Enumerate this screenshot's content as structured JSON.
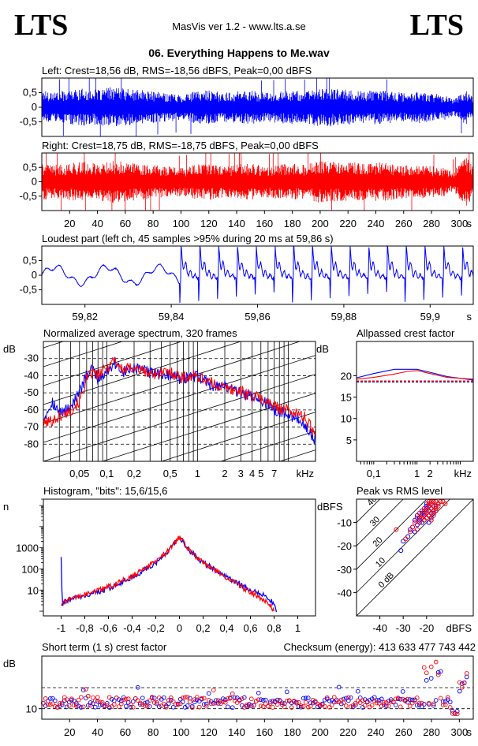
{
  "header": {
    "logo_left": "LTS",
    "logo_right": "LTS",
    "app_title": "MasVis ver 1.2 - www.lts.a.se",
    "file_title": "06. Everything Happens to Me.wav"
  },
  "colors": {
    "left": "#0000ff",
    "right": "#ff0000",
    "grid": "#000000",
    "background": "#ffffff"
  },
  "chart_data": [
    {
      "id": "left-waveform",
      "type": "area",
      "title": "Left: Crest=18,56 dB, RMS=-18,56 dBFS, Peak=0,00 dBFS",
      "ylim": [
        -1,
        1
      ],
      "xlim": [
        0,
        310
      ],
      "yticks": [
        {
          "v": 0.5,
          "l": "0,5"
        },
        {
          "v": 0,
          "l": "0"
        },
        {
          "v": -0.5,
          "l": "-0,5"
        }
      ],
      "envelope": {
        "x": [
          0,
          10,
          20,
          30,
          40,
          50,
          60,
          70,
          80,
          90,
          100,
          110,
          120,
          130,
          140,
          150,
          160,
          170,
          180,
          190,
          200,
          210,
          220,
          230,
          240,
          250,
          260,
          270,
          280,
          290,
          295,
          300,
          305,
          310
        ],
        "amp": [
          0.6,
          0.55,
          0.6,
          0.65,
          0.6,
          0.7,
          0.65,
          0.6,
          0.55,
          0.5,
          0.45,
          0.55,
          0.6,
          0.5,
          0.55,
          0.6,
          0.5,
          0.55,
          0.6,
          0.55,
          0.7,
          0.65,
          0.6,
          0.55,
          0.6,
          0.55,
          0.5,
          0.55,
          0.5,
          0.45,
          0.3,
          0.45,
          0.6,
          0.35
        ]
      }
    },
    {
      "id": "right-waveform",
      "type": "area",
      "title": "Right: Crest=18,75 dB, RMS=-18,75 dBFS, Peak=0,00 dBFS",
      "ylim": [
        -1,
        1
      ],
      "xlim": [
        0,
        310
      ],
      "xlabel": "s",
      "yticks": [
        {
          "v": 0.5,
          "l": "0,5"
        },
        {
          "v": 0,
          "l": "0"
        },
        {
          "v": -0.5,
          "l": "-0,5"
        }
      ],
      "xticks": [
        {
          "v": 20,
          "l": "20"
        },
        {
          "v": 40,
          "l": "40"
        },
        {
          "v": 60,
          "l": "60"
        },
        {
          "v": 80,
          "l": "80"
        },
        {
          "v": 100,
          "l": "100"
        },
        {
          "v": 120,
          "l": "120"
        },
        {
          "v": 140,
          "l": "140"
        },
        {
          "v": 160,
          "l": "160"
        },
        {
          "v": 180,
          "l": "180"
        },
        {
          "v": 200,
          "l": "200"
        },
        {
          "v": 220,
          "l": "220"
        },
        {
          "v": 240,
          "l": "240"
        },
        {
          "v": 260,
          "l": "260"
        },
        {
          "v": 280,
          "l": "280"
        },
        {
          "v": 300,
          "l": "300"
        }
      ],
      "envelope": {
        "x": [
          0,
          10,
          20,
          30,
          40,
          50,
          60,
          70,
          80,
          90,
          100,
          110,
          120,
          130,
          140,
          150,
          160,
          170,
          180,
          190,
          200,
          210,
          220,
          230,
          240,
          250,
          260,
          270,
          280,
          290,
          295,
          300,
          305,
          310
        ],
        "amp": [
          0.65,
          0.6,
          0.65,
          0.7,
          0.65,
          0.75,
          0.7,
          0.65,
          0.6,
          0.55,
          0.5,
          0.6,
          0.65,
          0.55,
          0.6,
          0.65,
          0.55,
          0.6,
          0.65,
          0.6,
          0.75,
          0.7,
          0.7,
          0.65,
          0.7,
          0.65,
          0.6,
          0.6,
          0.55,
          0.5,
          0.35,
          0.6,
          0.9,
          0.5
        ]
      }
    },
    {
      "id": "loudest-part",
      "type": "line",
      "title": "Loudest part (left  ch, 45 samples >95% during 20 ms at 59,86 s)",
      "ylim": [
        -1,
        1
      ],
      "xlim": [
        59.81,
        59.91
      ],
      "xlabel": "s",
      "yticks": [
        {
          "v": 0.5,
          "l": "0,5"
        },
        {
          "v": 0,
          "l": "0"
        },
        {
          "v": -0.5,
          "l": "-0,5"
        }
      ],
      "xticks": [
        {
          "v": 59.82,
          "l": "59,82"
        },
        {
          "v": 59.84,
          "l": "59,84"
        },
        {
          "v": 59.86,
          "l": "59,86"
        },
        {
          "v": 59.88,
          "l": "59,88"
        },
        {
          "v": 59.9,
          "l": "59,9"
        }
      ]
    },
    {
      "id": "spectrum",
      "type": "line",
      "title": "Normalized average spectrum, 320 frames",
      "ylabel": "dB",
      "xlabel": "kHz",
      "xscale": "log",
      "xlim": [
        0.02,
        20
      ],
      "ylim": [
        -90,
        -20
      ],
      "yticks": [
        {
          "v": -30,
          "l": "-30"
        },
        {
          "v": -40,
          "l": "-40"
        },
        {
          "v": -50,
          "l": "-50"
        },
        {
          "v": -60,
          "l": "-60"
        },
        {
          "v": -70,
          "l": "-70"
        },
        {
          "v": -80,
          "l": "-80"
        }
      ],
      "xticks": [
        {
          "v": 0.05,
          "l": "0,05"
        },
        {
          "v": 0.1,
          "l": "0,1"
        },
        {
          "v": 0.2,
          "l": "0,2"
        },
        {
          "v": 0.5,
          "l": "0,5"
        },
        {
          "v": 1,
          "l": "1"
        },
        {
          "v": 2,
          "l": "2"
        },
        {
          "v": 3,
          "l": "3"
        },
        {
          "v": 4,
          "l": "4"
        },
        {
          "v": 5,
          "l": "5"
        },
        {
          "v": 7,
          "l": "7"
        }
      ],
      "series": [
        {
          "color": "#0000ff",
          "x": [
            0.02,
            0.025,
            0.03,
            0.04,
            0.05,
            0.06,
            0.07,
            0.08,
            0.1,
            0.12,
            0.15,
            0.2,
            0.3,
            0.5,
            0.7,
            1,
            1.5,
            2,
            3,
            4,
            5,
            7,
            10,
            15,
            20
          ],
          "y": [
            -65,
            -55,
            -62,
            -58,
            -50,
            -40,
            -36,
            -42,
            -38,
            -32,
            -38,
            -36,
            -38,
            -40,
            -42,
            -40,
            -46,
            -46,
            -50,
            -52,
            -54,
            -60,
            -62,
            -68,
            -78
          ]
        },
        {
          "color": "#ff0000",
          "x": [
            0.02,
            0.025,
            0.03,
            0.04,
            0.05,
            0.06,
            0.07,
            0.08,
            0.1,
            0.12,
            0.15,
            0.2,
            0.3,
            0.5,
            0.7,
            1,
            1.5,
            2,
            3,
            4,
            5,
            7,
            10,
            15,
            20
          ],
          "y": [
            -68,
            -66,
            -64,
            -60,
            -55,
            -42,
            -38,
            -40,
            -36,
            -30,
            -37,
            -35,
            -39,
            -38,
            -41,
            -40,
            -45,
            -47,
            -49,
            -52,
            -53,
            -58,
            -60,
            -64,
            -74
          ]
        }
      ]
    },
    {
      "id": "allpassed-crest",
      "type": "line",
      "title": "Allpassed crest factor",
      "ylabel": "dB",
      "xlabel": "kHz",
      "xscale": "log",
      "xlim": [
        0.04,
        20
      ],
      "ylim": [
        0,
        28
      ],
      "yticks": [
        {
          "v": 20,
          "l": "20"
        },
        {
          "v": 15,
          "l": "15"
        },
        {
          "v": 10,
          "l": "10"
        },
        {
          "v": 5,
          "l": "5"
        }
      ],
      "xticks": [
        {
          "v": 0.1,
          "l": "0,1"
        },
        {
          "v": 1,
          "l": "1"
        },
        {
          "v": 2,
          "l": "2"
        }
      ],
      "series": [
        {
          "color": "#0000ff",
          "x": [
            0.04,
            0.1,
            0.3,
            0.6,
            1,
            2,
            5,
            20
          ],
          "y": [
            19.5,
            20.5,
            21.5,
            21.5,
            21.5,
            20.8,
            19.8,
            19
          ]
        },
        {
          "color": "#ff0000",
          "x": [
            0.04,
            0.1,
            0.3,
            0.6,
            1,
            2,
            5,
            20
          ],
          "y": [
            19.2,
            19.6,
            20.4,
            21,
            21.2,
            20.5,
            19.6,
            19.2
          ]
        }
      ],
      "reference": [
        {
          "color": "#0000ff",
          "y": 18.56
        },
        {
          "color": "#ff0000",
          "y": 18.75
        }
      ]
    },
    {
      "id": "histogram",
      "type": "line",
      "title": "Histogram, \"bits\": 15,6/15,6",
      "ylabel": "n",
      "yscale": "log",
      "xlim": [
        -1.15,
        1.15
      ],
      "ylim": [
        0.6,
        200000
      ],
      "yticks": [
        {
          "v": 1000,
          "l": "1000"
        },
        {
          "v": 100,
          "l": "100"
        },
        {
          "v": 10,
          "l": "10"
        }
      ],
      "xticks": [
        {
          "v": -1,
          "l": "-1"
        },
        {
          "v": -0.8,
          "l": "-0,8"
        },
        {
          "v": -0.6,
          "l": "-0,6"
        },
        {
          "v": -0.4,
          "l": "-0,4"
        },
        {
          "v": -0.2,
          "l": "-0,2"
        },
        {
          "v": 0,
          "l": "0"
        },
        {
          "v": 0.2,
          "l": "0,2"
        },
        {
          "v": 0.4,
          "l": "0,4"
        },
        {
          "v": 0.6,
          "l": "0,6"
        },
        {
          "v": 0.8,
          "l": "0,8"
        },
        {
          "v": 1,
          "l": "1"
        }
      ],
      "series": [
        {
          "color": "#0000ff",
          "x": [
            -1,
            -0.99,
            -0.96,
            -0.9,
            -0.8,
            -0.6,
            -0.4,
            -0.2,
            -0.1,
            0,
            0.1,
            0.2,
            0.4,
            0.6,
            0.7,
            0.78,
            0.8,
            0.82
          ],
          "y": [
            400,
            2,
            3,
            4,
            5,
            12,
            40,
            200,
            600,
            3000,
            600,
            200,
            40,
            10,
            6,
            3,
            2,
            1
          ]
        },
        {
          "color": "#ff0000",
          "x": [
            -1,
            -0.99,
            -0.96,
            -0.9,
            -0.8,
            -0.6,
            -0.4,
            -0.2,
            -0.1,
            0,
            0.1,
            0.2,
            0.4,
            0.6,
            0.7,
            0.76,
            0.78,
            0.8
          ],
          "y": [
            2,
            2,
            3,
            4,
            6,
            14,
            45,
            220,
            650,
            3200,
            620,
            210,
            38,
            8,
            4,
            2,
            1.5,
            1
          ]
        }
      ]
    },
    {
      "id": "peak-vs-rms",
      "type": "scatter",
      "title": "Peak vs RMS level",
      "ylabel": "dBFS",
      "xlabel": "dBFS",
      "xlim": [
        -50,
        0
      ],
      "ylim": [
        -50,
        0
      ],
      "yticks": [
        {
          "v": -10,
          "l": "-10"
        },
        {
          "v": -20,
          "l": "-20"
        },
        {
          "v": -30,
          "l": "-30"
        },
        {
          "v": -40,
          "l": "-40"
        }
      ],
      "xticks": [
        {
          "v": -40,
          "l": "-40"
        },
        {
          "v": -30,
          "l": "-30"
        },
        {
          "v": -20,
          "l": "-20"
        }
      ],
      "crest_labels": [
        {
          "v": 40,
          "l": "40"
        },
        {
          "v": 30,
          "l": "30"
        },
        {
          "v": 20,
          "l": "20"
        },
        {
          "v": 10,
          "l": "10"
        },
        {
          "v": 0,
          "l": "0 dB"
        }
      ],
      "series": [
        {
          "color": "#0000ff",
          "x": [
            -22,
            -20,
            -19,
            -18,
            -21,
            -23,
            -17,
            -16,
            -24,
            -19,
            -18,
            -25,
            -20,
            -22,
            -15,
            -26,
            -21,
            -19,
            -17,
            -27,
            -20,
            -18,
            -22,
            -24,
            -16,
            -14,
            -28,
            -19,
            -21,
            -23,
            -30,
            -25,
            -20,
            -18,
            -31,
            -17,
            -19
          ],
          "y": [
            -5,
            -3,
            -2,
            -4,
            -6,
            -8,
            -1,
            -3,
            -7,
            -5,
            -2,
            -9,
            -4,
            -6,
            -2,
            -12,
            -7,
            -3,
            -5,
            -13,
            -8,
            -6,
            -10,
            -11,
            -4,
            -1,
            -16,
            -7,
            -9,
            -9,
            -18,
            -14,
            -2,
            -8,
            -22,
            -6,
            -10
          ]
        },
        {
          "color": "#ff0000",
          "x": [
            -21,
            -19,
            -18,
            -17,
            -20,
            -22,
            -16,
            -15,
            -23,
            -18,
            -17,
            -24,
            -19,
            -21,
            -14,
            -25,
            -20,
            -18,
            -16,
            -26,
            -19,
            -17,
            -21,
            -23,
            -15,
            -13,
            -27,
            -18,
            -20,
            -22,
            -29,
            -24,
            -19,
            -17,
            -12,
            -16,
            -18,
            -33
          ],
          "y": [
            -4,
            -2,
            -1,
            -3,
            -5,
            -7,
            -1,
            -2,
            -6,
            -4,
            -1,
            -8,
            -3,
            -5,
            -1,
            -10,
            -6,
            -2,
            -4,
            -12,
            -7,
            -5,
            -9,
            -10,
            -3,
            -1,
            -14,
            -6,
            -8,
            -8,
            -17,
            -13,
            -1,
            -7,
            -2,
            -5,
            -9,
            -13
          ]
        }
      ]
    },
    {
      "id": "short-term-crest",
      "type": "scatter",
      "title": "Short term (1 s) crest factor",
      "ylabel": "dB",
      "xlabel": "s",
      "xlim": [
        0,
        310
      ],
      "ylim": [
        5,
        35
      ],
      "yticks": [
        {
          "v": 10,
          "l": "10"
        }
      ],
      "xticks": [
        {
          "v": 20,
          "l": "20"
        },
        {
          "v": 40,
          "l": "40"
        },
        {
          "v": 60,
          "l": "60"
        },
        {
          "v": 80,
          "l": "80"
        },
        {
          "v": 100,
          "l": "100"
        },
        {
          "v": 120,
          "l": "120"
        },
        {
          "v": 140,
          "l": "140"
        },
        {
          "v": 160,
          "l": "160"
        },
        {
          "v": 180,
          "l": "180"
        },
        {
          "v": 200,
          "l": "200"
        },
        {
          "v": 220,
          "l": "220"
        },
        {
          "v": 240,
          "l": "240"
        },
        {
          "v": 260,
          "l": "260"
        },
        {
          "v": 280,
          "l": "280"
        },
        {
          "v": 300,
          "l": "300"
        }
      ],
      "mean": 13,
      "checksum": "Checksum (energy):   413 633 477 743 442"
    }
  ]
}
